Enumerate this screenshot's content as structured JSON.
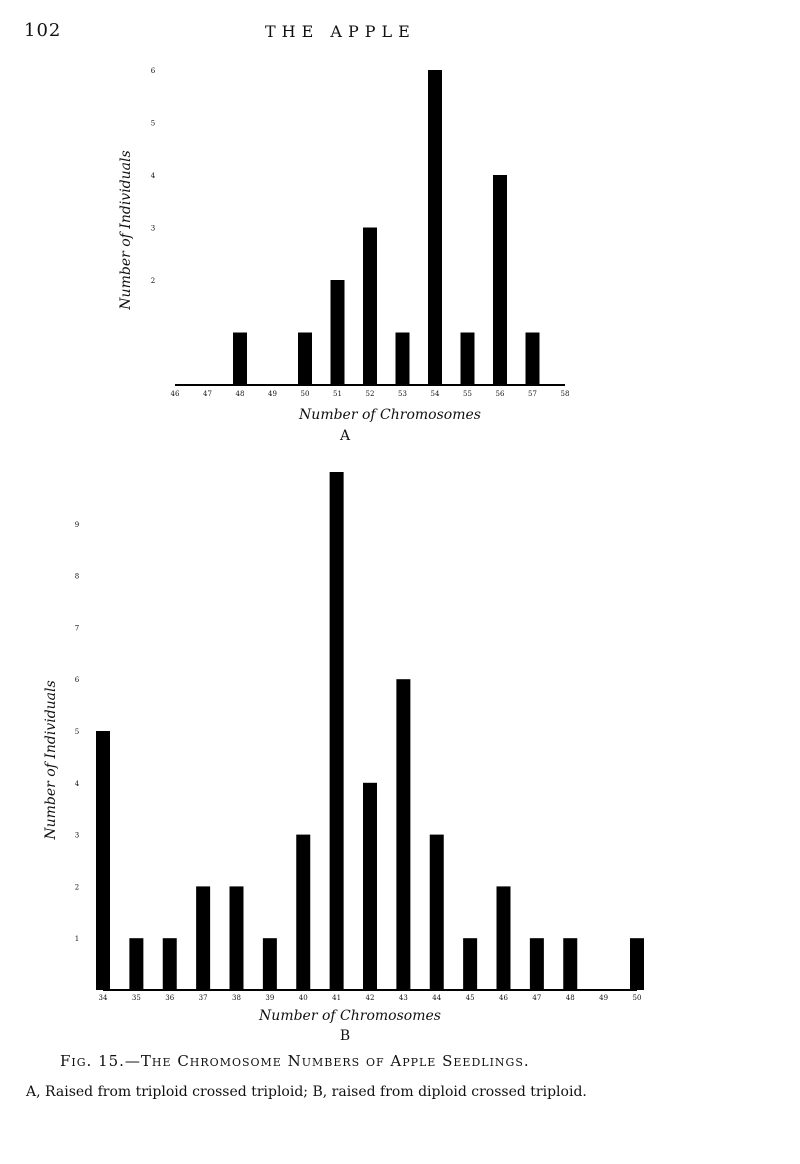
{
  "header": {
    "page_number": "102",
    "running_title": "THE APPLE"
  },
  "caption": {
    "title": "Fig. 15.—The Chromosome Numbers of Apple Seedlings.",
    "subtitle": "A, Raised from triploid crossed triploid; B, raised from diploid crossed triploid."
  },
  "chart_data": [
    {
      "type": "bar",
      "panel": "A",
      "xlabel": "Number of Chromosomes",
      "ylabel": "Number of Individuals",
      "categories": [
        "46",
        "47",
        "48",
        "49",
        "50",
        "51",
        "52",
        "53",
        "54",
        "55",
        "56",
        "57",
        "58"
      ],
      "values": [
        0,
        0,
        1,
        0,
        1,
        2,
        3,
        1,
        6,
        1,
        4,
        1,
        0
      ],
      "y_ticks": [
        "2",
        "3",
        "4",
        "5",
        "6"
      ],
      "ylim": [
        0,
        6
      ],
      "grid": false,
      "color": "#000000"
    },
    {
      "type": "bar",
      "panel": "B",
      "xlabel": "Number of Chromosomes",
      "ylabel": "Number of Individuals",
      "categories": [
        "34",
        "35",
        "36",
        "37",
        "38",
        "39",
        "40",
        "41",
        "42",
        "43",
        "44",
        "45",
        "46",
        "47",
        "48",
        "49",
        "50"
      ],
      "values": [
        5,
        1,
        1,
        2,
        2,
        1,
        3,
        10,
        4,
        6,
        3,
        1,
        2,
        1,
        1,
        0,
        1
      ],
      "y_ticks": [
        "1",
        "2",
        "3",
        "4",
        "5",
        "6",
        "7",
        "8",
        "9"
      ],
      "ylim": [
        0,
        10
      ],
      "grid": false,
      "color": "#000000"
    }
  ]
}
